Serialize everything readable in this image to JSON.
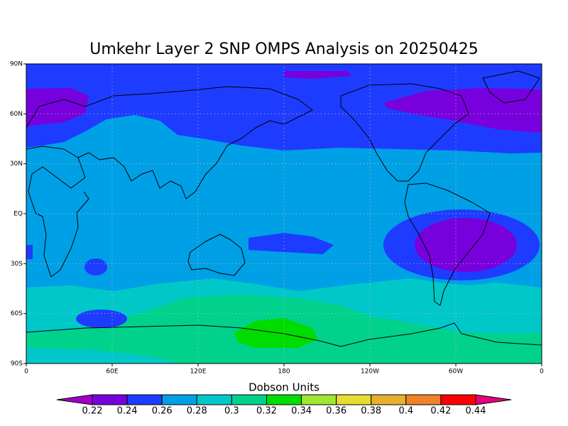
{
  "title": "Umkehr Layer 2 SNP OMPS Analysis on 20250425",
  "map": {
    "lat_labels": [
      "90N",
      "60N",
      "30N",
      "EQ",
      "30S",
      "60S",
      "90S"
    ],
    "lon_labels": [
      "0",
      "60E",
      "120E",
      "180",
      "120W",
      "60W",
      "0"
    ]
  },
  "colorbar": {
    "title": "Dobson Units",
    "levels": [
      0.22,
      0.24,
      0.26,
      0.28,
      0.3,
      0.32,
      0.34,
      0.36,
      0.38,
      0.4,
      0.42,
      0.44
    ],
    "colors": [
      "#a000c8",
      "#7800dc",
      "#1e3cff",
      "#00a0e6",
      "#00c8c8",
      "#00d28c",
      "#00dc00",
      "#a0e632",
      "#e6dc32",
      "#e6af2d",
      "#f08228",
      "#fa0000",
      "#e6007a"
    ]
  }
}
